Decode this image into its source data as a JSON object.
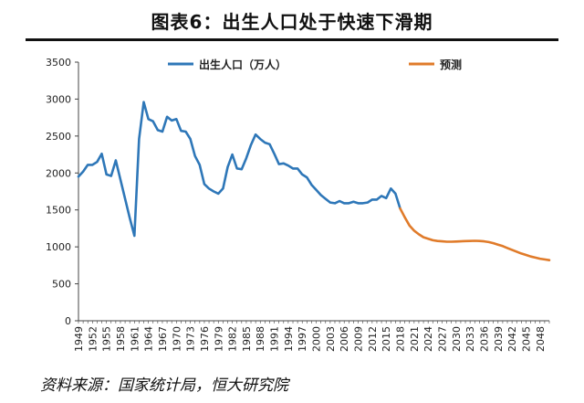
{
  "title": "图表6：出生人口处于快速下滑期",
  "source": "资料来源：国家统计局，恒大研究院",
  "colors": {
    "actual": "#2e77b8",
    "forecast": "#e07b2a"
  },
  "chart_data": {
    "type": "line",
    "ylim": [
      0,
      3500
    ],
    "yticks": [
      0,
      500,
      1000,
      1500,
      2000,
      2500,
      3000,
      3500
    ],
    "xlim": [
      1949,
      2050
    ],
    "xtick_labels": [
      "1949",
      "1952",
      "1955",
      "1958",
      "1961",
      "1964",
      "1967",
      "1970",
      "1973",
      "1976",
      "1979",
      "1982",
      "1985",
      "1988",
      "1991",
      "1994",
      "1997",
      "2000",
      "2003",
      "2006",
      "2009",
      "2012",
      "2015",
      "2018",
      "2021",
      "2024",
      "2027",
      "2030",
      "2033",
      "2036",
      "2039",
      "2042",
      "2045",
      "2048"
    ],
    "legend_position": "top",
    "series": [
      {
        "name": "出生人口（万人）",
        "x": [
          1949,
          1950,
          1951,
          1952,
          1953,
          1954,
          1955,
          1956,
          1957,
          1958,
          1959,
          1960,
          1961,
          1962,
          1963,
          1964,
          1965,
          1966,
          1967,
          1968,
          1969,
          1970,
          1971,
          1972,
          1973,
          1974,
          1975,
          1976,
          1977,
          1978,
          1979,
          1980,
          1981,
          1982,
          1983,
          1984,
          1985,
          1986,
          1987,
          1988,
          1989,
          1990,
          1991,
          1992,
          1993,
          1994,
          1995,
          1996,
          1997,
          1998,
          1999,
          2000,
          2001,
          2002,
          2003,
          2004,
          2005,
          2006,
          2007,
          2008,
          2009,
          2010,
          2011,
          2012,
          2013,
          2014,
          2015,
          2016,
          2017,
          2018
        ],
        "values": [
          1950,
          2020,
          2110,
          2110,
          2150,
          2260,
          1980,
          1960,
          2170,
          1910,
          1650,
          1390,
          1150,
          2460,
          2960,
          2730,
          2700,
          2580,
          2560,
          2760,
          2710,
          2730,
          2570,
          2560,
          2460,
          2230,
          2110,
          1850,
          1790,
          1750,
          1720,
          1790,
          2080,
          2250,
          2060,
          2050,
          2200,
          2380,
          2520,
          2460,
          2410,
          2390,
          2260,
          2120,
          2130,
          2100,
          2060,
          2060,
          1980,
          1940,
          1840,
          1770,
          1700,
          1650,
          1600,
          1590,
          1620,
          1590,
          1590,
          1610,
          1590,
          1590,
          1600,
          1640,
          1640,
          1690,
          1660,
          1790,
          1720,
          1520
        ]
      },
      {
        "name": "预测",
        "x": [
          2018,
          2019,
          2020,
          2021,
          2022,
          2023,
          2024,
          2025,
          2026,
          2027,
          2028,
          2029,
          2030,
          2031,
          2032,
          2033,
          2034,
          2035,
          2036,
          2037,
          2038,
          2039,
          2040,
          2041,
          2042,
          2043,
          2044,
          2045,
          2046,
          2047,
          2048,
          2049,
          2050
        ],
        "values": [
          1520,
          1400,
          1290,
          1220,
          1170,
          1130,
          1110,
          1090,
          1080,
          1075,
          1070,
          1070,
          1072,
          1075,
          1078,
          1080,
          1082,
          1080,
          1075,
          1065,
          1050,
          1030,
          1010,
          985,
          960,
          935,
          910,
          890,
          870,
          855,
          840,
          830,
          820
        ]
      }
    ]
  }
}
